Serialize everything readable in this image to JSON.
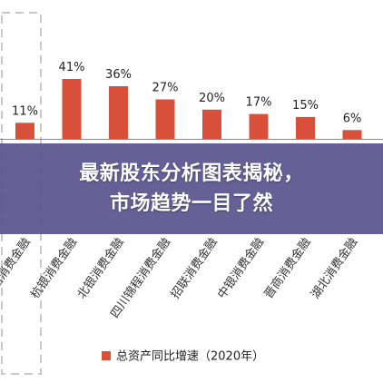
{
  "chart_data": {
    "type": "bar",
    "categories": [
      "金融",
      "金美信消费金融",
      "杭银消费金融",
      "北银消费金融",
      "四川锦程消费金融",
      "招联消费金融",
      "中银消费金融",
      "晋商消费金融",
      "湖北消费金融"
    ],
    "values": [
      null,
      11,
      41,
      36,
      27,
      20,
      17,
      15,
      6
    ],
    "value_labels": [
      "",
      "11%",
      "41%",
      "36%",
      "27%",
      "20%",
      "17%",
      "15%",
      "6%"
    ],
    "series": [
      {
        "name": "总资产同比增速（2020年）",
        "values": [
          null,
          11,
          41,
          36,
          27,
          20,
          17,
          15,
          6
        ]
      }
    ],
    "ylim": [
      0,
      45
    ],
    "unit": "%",
    "legend_position": "bottom",
    "bar_color": "#d9503a",
    "highlight_border_color": "#c9c9c9"
  },
  "legend": {
    "label": "总资产同比增速（2020年）",
    "swatch_color": "#d9503a"
  },
  "banner": {
    "line1": "最新股东分析图表揭秘，",
    "line2": "市场趋势一目了然",
    "background": "#554f8c"
  }
}
